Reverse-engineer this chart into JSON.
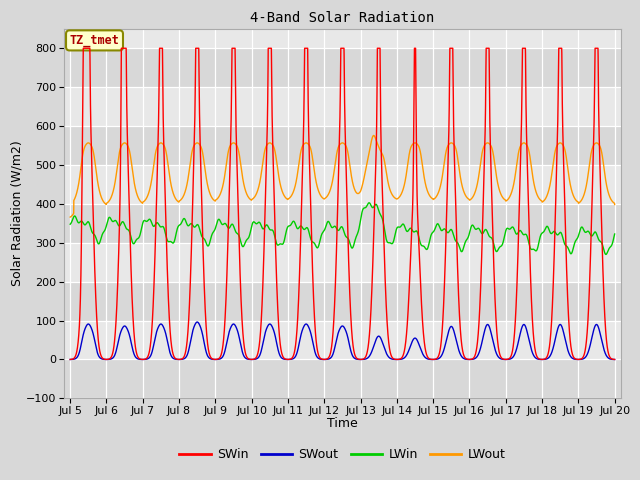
{
  "title": "4-Band Solar Radiation",
  "xlabel": "Time",
  "ylabel": "Solar Radiation (W/m2)",
  "ylim": [
    -100,
    850
  ],
  "xlim_days": [
    4.83,
    20.17
  ],
  "annotation_text": "TZ_tmet",
  "legend_labels": [
    "SWin",
    "SWout",
    "LWin",
    "LWout"
  ],
  "legend_colors": [
    "#ff0000",
    "#0000cc",
    "#00cc00",
    "#ff9900"
  ],
  "yticks": [
    -100,
    0,
    100,
    200,
    300,
    400,
    500,
    600,
    700,
    800
  ],
  "xtick_labels": [
    "Jul 5",
    "Jul 6",
    "Jul 7",
    "Jul 8",
    "Jul 9",
    "Jul 10",
    "Jul 11",
    "Jul 12",
    "Jul 13",
    "Jul 14",
    "Jul 15",
    "Jul 16",
    "Jul 17",
    "Jul 18",
    "Jul 19",
    "Jul 20"
  ],
  "xtick_positions": [
    5,
    6,
    7,
    8,
    9,
    10,
    11,
    12,
    13,
    14,
    15,
    16,
    17,
    18,
    19,
    20
  ],
  "bg_color": "#d8d8d8",
  "plot_bg_color": "#e8e8e8",
  "grid_color": "#ffffff",
  "line_width": 1.0,
  "figsize": [
    6.4,
    4.8
  ],
  "dpi": 100
}
